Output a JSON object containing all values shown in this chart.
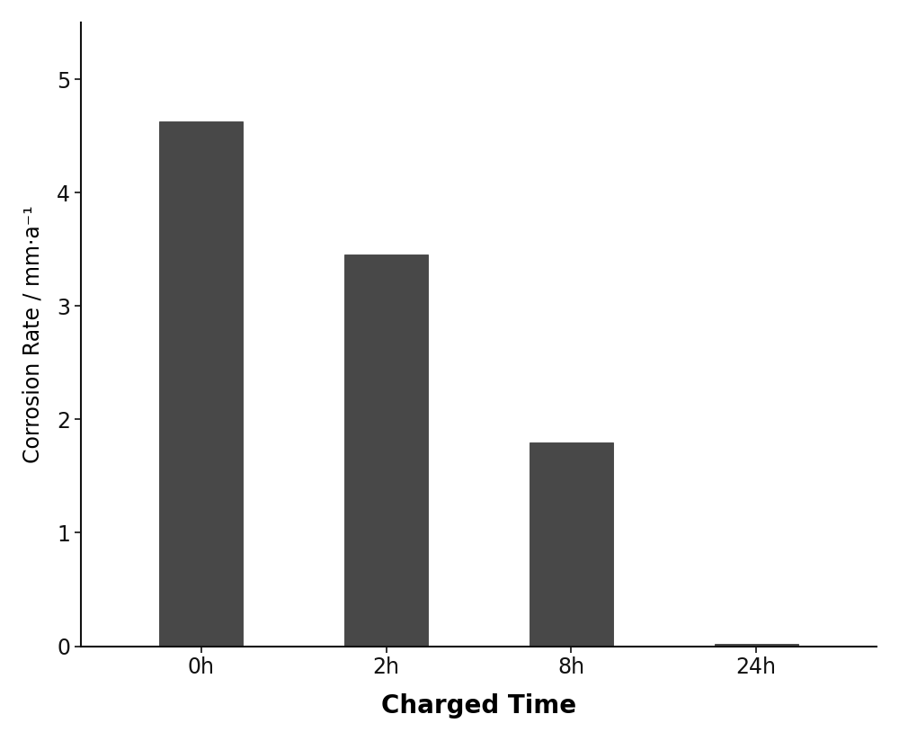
{
  "categories": [
    "0h",
    "2h",
    "8h",
    "24h"
  ],
  "values": [
    4.63,
    3.45,
    1.8,
    0.02
  ],
  "bar_color": "#484848",
  "bar_edgecolor": "#2a2a2a",
  "xlabel": "Charged Time",
  "ylabel": "Corrosion Rate / mm·a⁻¹",
  "ylim": [
    0,
    5.5
  ],
  "yticks": [
    0,
    1,
    2,
    3,
    4,
    5
  ],
  "xlabel_fontsize": 20,
  "ylabel_fontsize": 17,
  "tick_fontsize": 17,
  "xlabel_fontweight": "bold",
  "background_color": "#ffffff",
  "plot_background": "#ffffff",
  "bar_width": 0.45
}
